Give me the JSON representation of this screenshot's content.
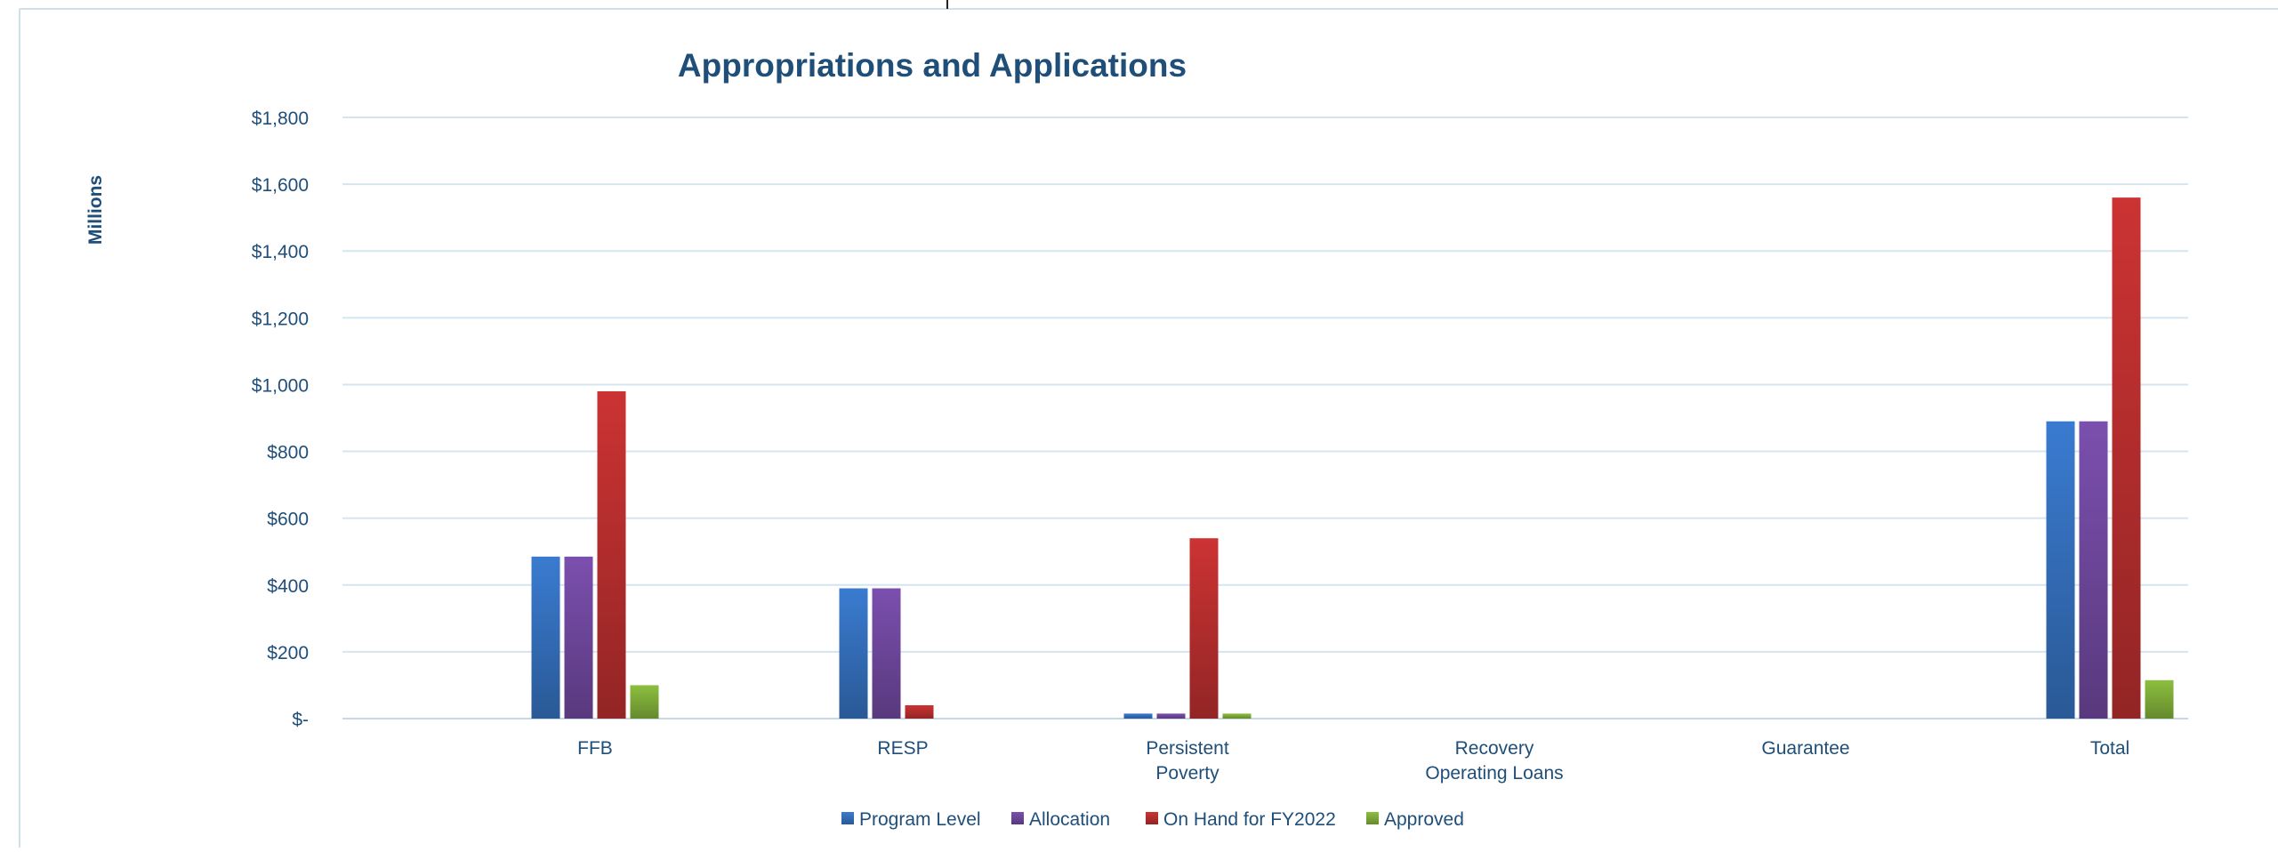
{
  "chart_data": {
    "type": "bar",
    "title": "Appropriations and Applications",
    "xlabel": "",
    "ylabel": "Millions",
    "ylim": [
      0,
      1800
    ],
    "yticks": [
      0,
      200,
      400,
      600,
      800,
      1000,
      1200,
      1400,
      1600,
      1800
    ],
    "ytick_labels": [
      "$-",
      "$200",
      "$400",
      "$600",
      "$800",
      "$1,000",
      "$1,200",
      "$1,400",
      "$1,600",
      "$1,800"
    ],
    "categories": [
      [
        "FFB"
      ],
      [
        "RESP"
      ],
      [
        "Persistent",
        "Poverty"
      ],
      [
        "Recovery",
        "Operating Loans"
      ],
      [
        "Guarantee"
      ],
      [
        "Total"
      ]
    ],
    "series": [
      {
        "name": "Program Level",
        "color": "#3a7bd0",
        "values": [
          485,
          390,
          15,
          0,
          0,
          890
        ]
      },
      {
        "name": "Allocation",
        "color": "#7b4fae",
        "values": [
          485,
          390,
          15,
          0,
          0,
          890
        ]
      },
      {
        "name": "On Hand for FY2022",
        "color": "#cc3333",
        "values": [
          980,
          40,
          540,
          0,
          0,
          1560
        ]
      },
      {
        "name": "Approved",
        "color": "#8cbf3f",
        "values": [
          100,
          0,
          15,
          0,
          0,
          115
        ]
      }
    ],
    "grid": true,
    "legend_position": "bottom"
  }
}
